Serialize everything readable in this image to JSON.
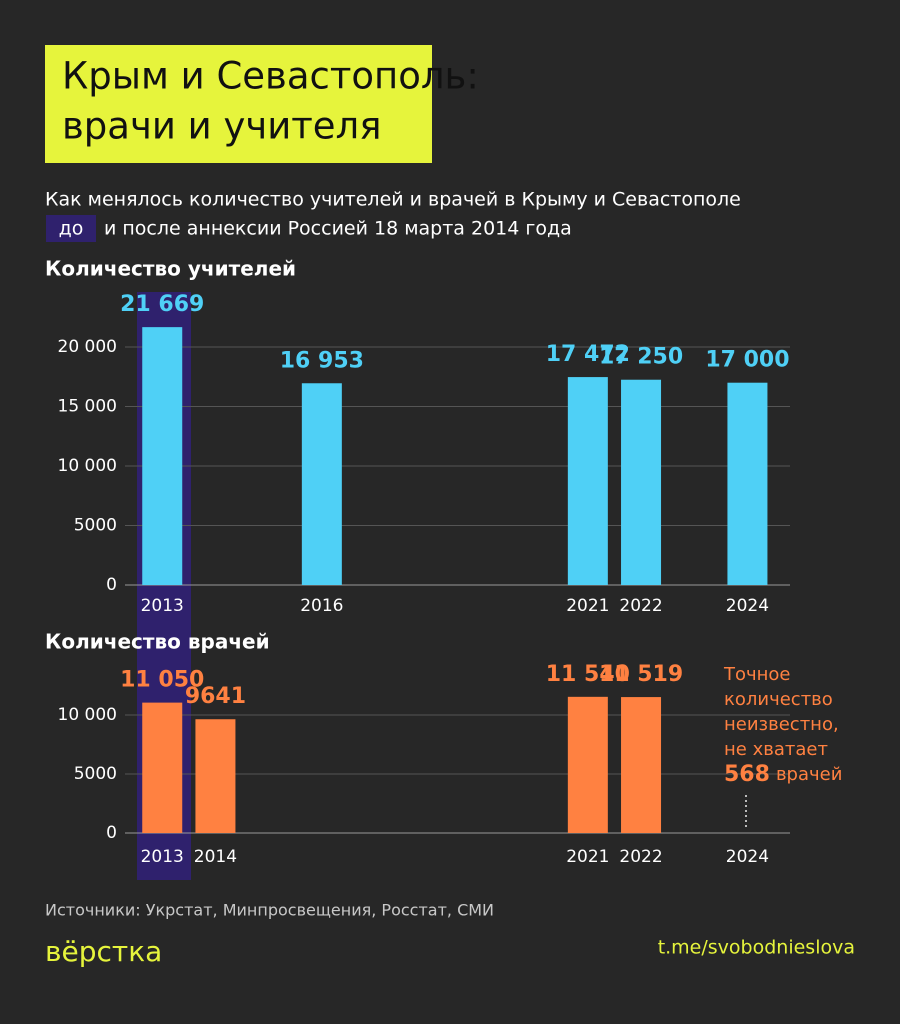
{
  "header": {
    "title": [
      "Крым и Севастополь:",
      "врачи и учителя"
    ],
    "subtitle": [
      "Как менялось количество учителей и врачей в Крыму и Севастополе",
      "до",
      "и после аннексии Россией 18 марта 2014 года"
    ]
  },
  "chart_data": [
    {
      "type": "bar",
      "title": "Количество учителей",
      "color": "#4fd0f6",
      "x": [
        2013,
        2016,
        2021,
        2022,
        2024
      ],
      "xlim": [
        2012.3,
        2024.8
      ],
      "values": [
        21669,
        16953,
        17472,
        17250,
        17000
      ],
      "value_labels": [
        "21 669",
        "16 953",
        "17 472",
        "17 250",
        "17 000"
      ],
      "ylim": [
        0,
        20000
      ],
      "yticks": [
        0,
        5000,
        {
          "value": 10000,
          "label": "10 000"
        },
        {
          "value": 15000,
          "label": "15 000"
        },
        {
          "value": 20000,
          "label": "20 000"
        }
      ],
      "grid": true
    },
    {
      "type": "bar",
      "title": "Количество врачей",
      "color": "#ff8141",
      "x": [
        2013,
        2014,
        2021,
        2022,
        2024
      ],
      "xlim": [
        2012.3,
        2024.8
      ],
      "values": [
        11050,
        9641,
        11540,
        11519,
        null
      ],
      "value_labels": [
        "11 050",
        "9641",
        "11 540",
        "11 519",
        null
      ],
      "ylim": [
        0,
        10000
      ],
      "yticks": [
        0,
        5000,
        {
          "value": 10000,
          "label": "10 000"
        }
      ],
      "grid": true,
      "annotation": {
        "lines": [
          "Точное",
          "количество",
          "неизвестно,",
          "не хватает"
        ],
        "number": "568",
        "unit": "врачей"
      }
    }
  ],
  "footer": {
    "source": "Источники: Укрстат, Минпросвещения, Росстат, СМИ",
    "logo": "вёрстка",
    "link": "t.me/svobodnieslova"
  }
}
